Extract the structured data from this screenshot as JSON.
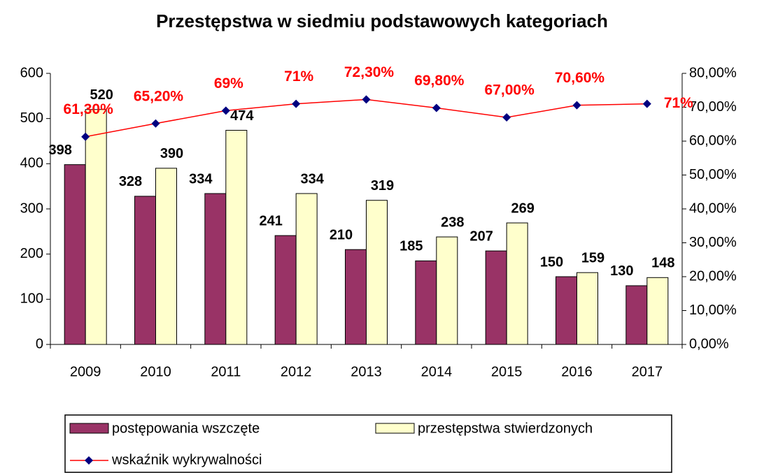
{
  "chart_data": {
    "type": "bar_line",
    "title": "Przestępstwa w siedmiu podstawowych kategoriach",
    "categories": [
      "2009",
      "2010",
      "2011",
      "2012",
      "2013",
      "2014",
      "2015",
      "2016",
      "2017"
    ],
    "series": [
      {
        "name": "postępowania wszczęte",
        "color": "#993366",
        "values": [
          398,
          328,
          334,
          241,
          210,
          185,
          207,
          150,
          130
        ]
      },
      {
        "name": "przestępstwa stwierdzonych",
        "color": "#ffffcc",
        "values": [
          520,
          390,
          474,
          334,
          319,
          238,
          269,
          159,
          148
        ]
      },
      {
        "name": "wskaźnik wykrywalności",
        "color": "#ff0000",
        "marker_color": "#000080",
        "axis": "y2",
        "values": [
          61.3,
          65.2,
          69,
          71,
          72.3,
          69.8,
          67,
          70.6,
          71
        ],
        "value_labels": [
          "61,30%",
          "65,20%",
          "69%",
          "71%",
          "72,30%",
          "69,80%",
          "67,00%",
          "70,60%",
          "71%"
        ]
      }
    ],
    "ylim": [
      0,
      600
    ],
    "yticks": [
      0,
      100,
      200,
      300,
      400,
      500,
      600
    ],
    "y2lim": [
      0,
      80
    ],
    "y2ticks": [
      {
        "value": 0,
        "label": "0,00%"
      },
      {
        "value": 10,
        "label": "10,00%"
      },
      {
        "value": 20,
        "label": "20,00%"
      },
      {
        "value": 30,
        "label": "30,00%"
      },
      {
        "value": 40,
        "label": "40,00%"
      },
      {
        "value": 50,
        "label": "50,00%"
      },
      {
        "value": 60,
        "label": "60,00%"
      },
      {
        "value": 70,
        "label": "70,00%"
      },
      {
        "value": 80,
        "label": "80,00%"
      }
    ],
    "legend": "bottom"
  }
}
